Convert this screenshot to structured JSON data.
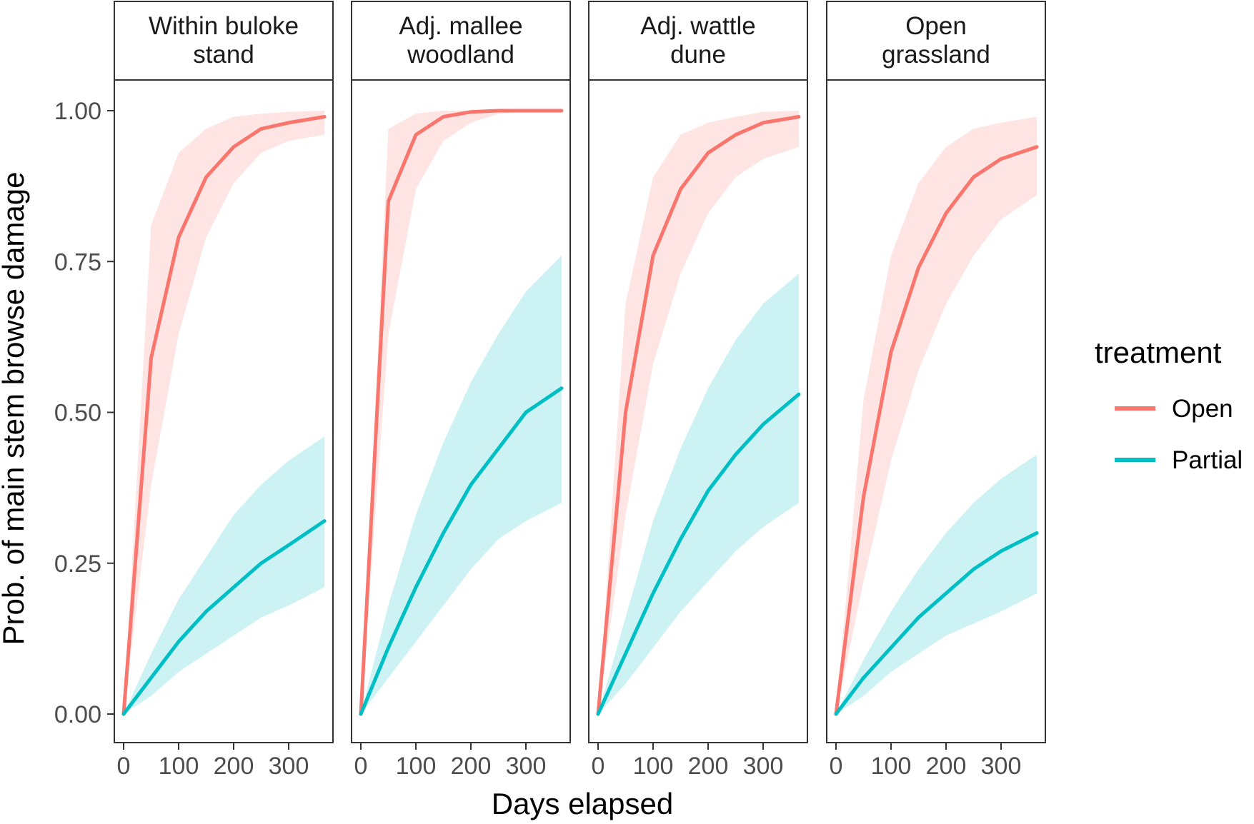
{
  "chart_data": {
    "type": "line",
    "xlabel": "Days elapsed",
    "ylabel": "Prob. of main stem browse damage",
    "xlim": [
      0,
      365
    ],
    "ylim": [
      0,
      1
    ],
    "x_ticks": [
      0,
      100,
      200,
      300
    ],
    "x_tick_labels": [
      "0",
      "100",
      "200",
      "300"
    ],
    "y_ticks": [
      0,
      0.25,
      0.5,
      0.75,
      1.0
    ],
    "y_tick_labels": [
      "0.00",
      "0.25",
      "0.50",
      "0.75",
      "1.00"
    ],
    "grid": false,
    "legend": {
      "title": "treatment",
      "placement": "right",
      "entries": [
        {
          "label": "Open",
          "color": "#F8766D"
        },
        {
          "label": "Partial",
          "color": "#00BFC4"
        }
      ]
    },
    "x": [
      0,
      50,
      100,
      150,
      200,
      250,
      300,
      365
    ],
    "panels": [
      {
        "title_lines": [
          "Within buloke",
          "stand"
        ],
        "series": [
          {
            "name": "Open",
            "color": "#F8766D",
            "values": [
              0,
              0.59,
              0.79,
              0.89,
              0.94,
              0.97,
              0.98,
              0.99
            ],
            "lower": [
              0,
              0.38,
              0.63,
              0.79,
              0.88,
              0.93,
              0.95,
              0.96
            ],
            "upper": [
              0,
              0.81,
              0.93,
              0.97,
              0.99,
              0.995,
              0.998,
              1.0
            ]
          },
          {
            "name": "Partial",
            "color": "#00BFC4",
            "values": [
              0,
              0.06,
              0.12,
              0.17,
              0.21,
              0.25,
              0.28,
              0.32
            ],
            "lower": [
              0,
              0.03,
              0.07,
              0.1,
              0.13,
              0.16,
              0.18,
              0.21
            ],
            "upper": [
              0,
              0.1,
              0.19,
              0.26,
              0.33,
              0.38,
              0.42,
              0.46
            ]
          }
        ]
      },
      {
        "title_lines": [
          "Adj. mallee",
          "woodland"
        ],
        "series": [
          {
            "name": "Open",
            "color": "#F8766D",
            "values": [
              0,
              0.85,
              0.96,
              0.99,
              0.998,
              1.0,
              1.0,
              1.0
            ],
            "lower": [
              0,
              0.63,
              0.87,
              0.95,
              0.98,
              0.995,
              0.998,
              1.0
            ],
            "upper": [
              0,
              0.97,
              0.995,
              1.0,
              1.0,
              1.0,
              1.0,
              1.0
            ]
          },
          {
            "name": "Partial",
            "color": "#00BFC4",
            "values": [
              0,
              0.11,
              0.21,
              0.3,
              0.38,
              0.44,
              0.5,
              0.54
            ],
            "lower": [
              0,
              0.06,
              0.12,
              0.18,
              0.24,
              0.29,
              0.32,
              0.35
            ],
            "upper": [
              0,
              0.18,
              0.33,
              0.45,
              0.55,
              0.63,
              0.7,
              0.76
            ]
          }
        ]
      },
      {
        "title_lines": [
          "Adj. wattle",
          "dune"
        ],
        "series": [
          {
            "name": "Open",
            "color": "#F8766D",
            "values": [
              0,
              0.5,
              0.76,
              0.87,
              0.93,
              0.96,
              0.98,
              0.99
            ],
            "lower": [
              0,
              0.33,
              0.58,
              0.73,
              0.83,
              0.89,
              0.92,
              0.94
            ],
            "upper": [
              0,
              0.68,
              0.89,
              0.96,
              0.98,
              0.99,
              0.998,
              1.0
            ]
          },
          {
            "name": "Partial",
            "color": "#00BFC4",
            "values": [
              0,
              0.1,
              0.2,
              0.29,
              0.37,
              0.43,
              0.48,
              0.53
            ],
            "lower": [
              0,
              0.05,
              0.11,
              0.17,
              0.22,
              0.27,
              0.31,
              0.35
            ],
            "upper": [
              0,
              0.16,
              0.32,
              0.44,
              0.54,
              0.62,
              0.68,
              0.73
            ]
          }
        ]
      },
      {
        "title_lines": [
          "Open",
          "grassland"
        ],
        "series": [
          {
            "name": "Open",
            "color": "#F8766D",
            "values": [
              0,
              0.36,
              0.6,
              0.74,
              0.83,
              0.89,
              0.92,
              0.94
            ],
            "lower": [
              0,
              0.22,
              0.42,
              0.57,
              0.68,
              0.76,
              0.82,
              0.86
            ],
            "upper": [
              0,
              0.52,
              0.76,
              0.88,
              0.94,
              0.97,
              0.98,
              0.99
            ]
          },
          {
            "name": "Partial",
            "color": "#00BFC4",
            "values": [
              0,
              0.06,
              0.11,
              0.16,
              0.2,
              0.24,
              0.27,
              0.3
            ],
            "lower": [
              0,
              0.03,
              0.07,
              0.1,
              0.13,
              0.15,
              0.17,
              0.2
            ],
            "upper": [
              0,
              0.09,
              0.17,
              0.24,
              0.3,
              0.35,
              0.39,
              0.43
            ]
          }
        ]
      }
    ]
  }
}
